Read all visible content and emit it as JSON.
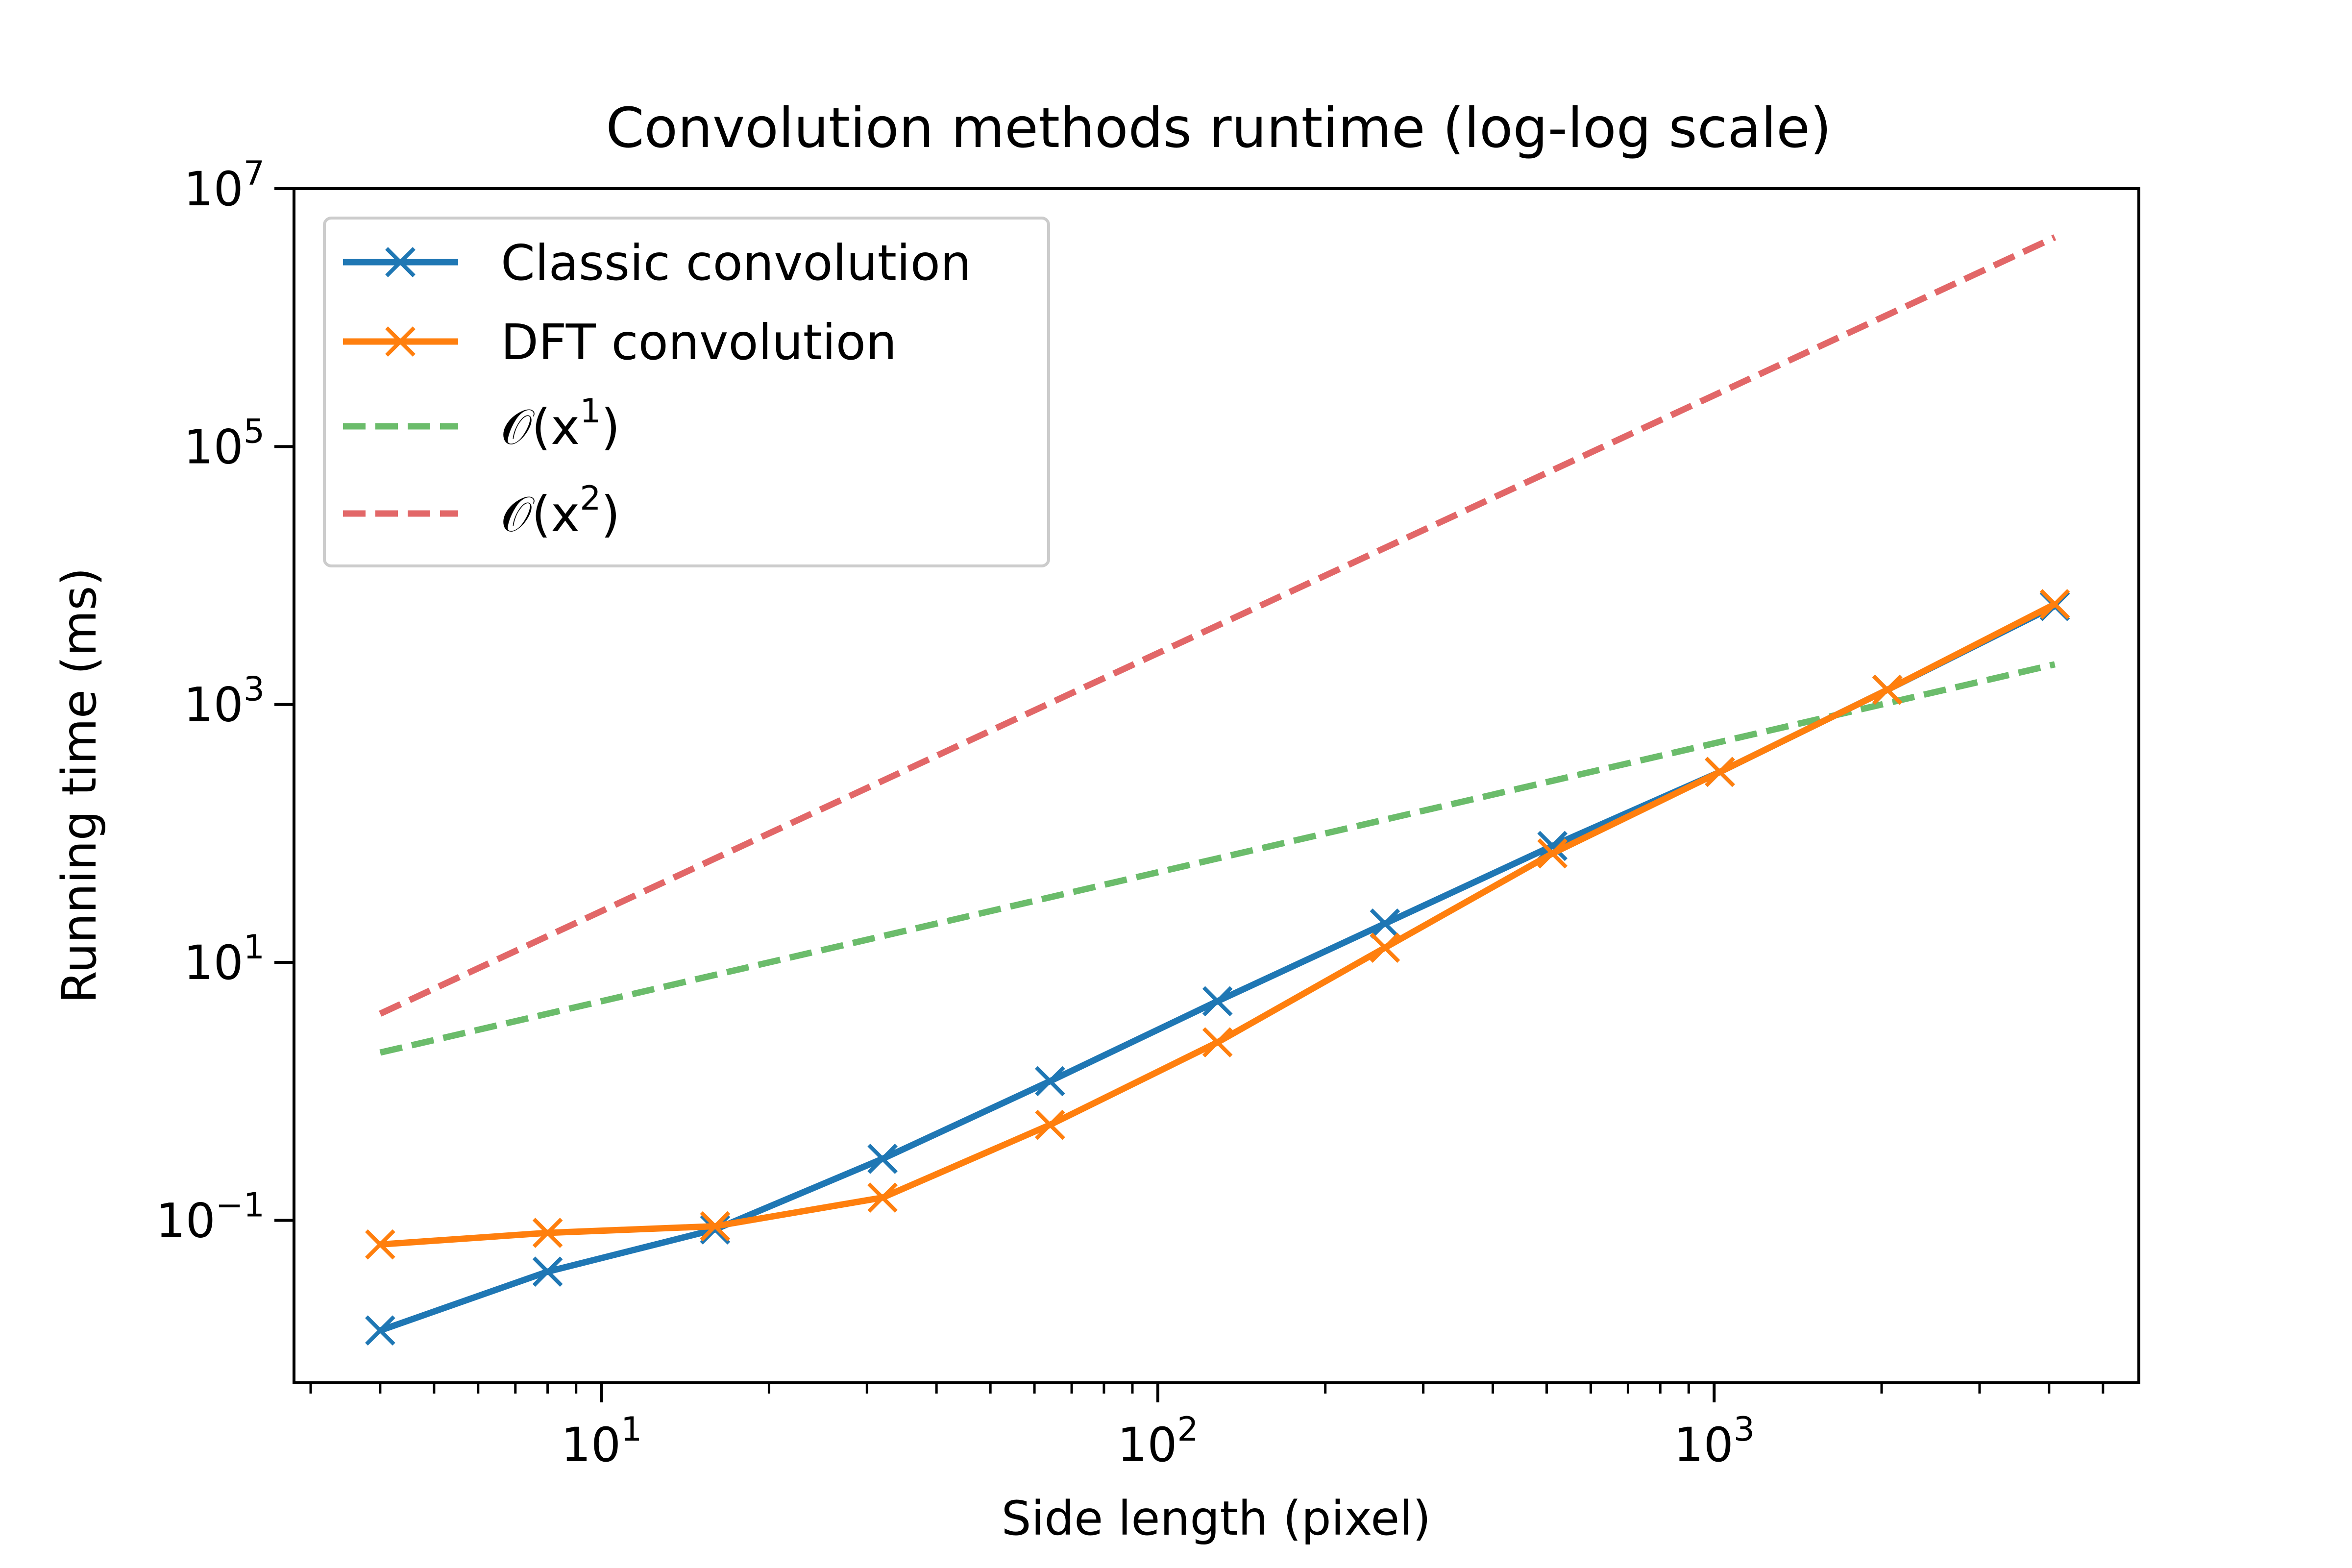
{
  "chart_data": {
    "type": "line",
    "title": "Convolution methods runtime (log-log scale)",
    "xlabel": "Side length (pixel)",
    "ylabel": "Running time (ms)",
    "xscale": "log",
    "yscale": "log",
    "xlim": [
      2.8,
      5800
    ],
    "ylim": [
      0.0055,
      10000000
    ],
    "grid": false,
    "legend_position": "top-left",
    "x_ticks": [
      {
        "value": 10,
        "base": "10",
        "exp": "1"
      },
      {
        "value": 100,
        "base": "10",
        "exp": "2"
      },
      {
        "value": 1000,
        "base": "10",
        "exp": "3"
      }
    ],
    "y_ticks": [
      {
        "value": 0.1,
        "base": "10",
        "exp": "−1"
      },
      {
        "value": 10,
        "base": "10",
        "exp": "1"
      },
      {
        "value": 1000,
        "base": "10",
        "exp": "3"
      },
      {
        "value": 100000,
        "base": "10",
        "exp": "5"
      },
      {
        "value": 10000000,
        "base": "10",
        "exp": "7"
      }
    ],
    "x": [
      4,
      8,
      16,
      32,
      64,
      128,
      256,
      512,
      1024,
      2048,
      4096
    ],
    "series": [
      {
        "name": "Classic convolution",
        "color": "#1f77b4",
        "marker": "x",
        "linestyle": "solid",
        "values": [
          0.014,
          0.04,
          0.085,
          0.3,
          1.2,
          5,
          20,
          80,
          300,
          1300,
          5800
        ]
      },
      {
        "name": "DFT convolution",
        "color": "#ff7f0e",
        "marker": "x",
        "linestyle": "solid",
        "values": [
          0.065,
          0.08,
          0.09,
          0.15,
          0.55,
          2.4,
          13,
          70,
          300,
          1300,
          6000
        ]
      },
      {
        "name": "O(x^1)",
        "legend_base": "𝒪(x",
        "legend_exp": "1",
        "legend_close": ")",
        "color": "#2ca02c",
        "linestyle": "dashed",
        "values": [
          2,
          4,
          8,
          16,
          32,
          64,
          128,
          256,
          512,
          1024,
          2048
        ]
      },
      {
        "name": "O(x^2)",
        "legend_base": "𝒪(x",
        "legend_exp": "2",
        "legend_close": ")",
        "color": "#d62728",
        "linestyle": "dashed",
        "values": [
          4,
          16,
          64,
          256,
          1024,
          4096,
          16384,
          65536,
          262144,
          1048576,
          4194304
        ]
      }
    ]
  }
}
